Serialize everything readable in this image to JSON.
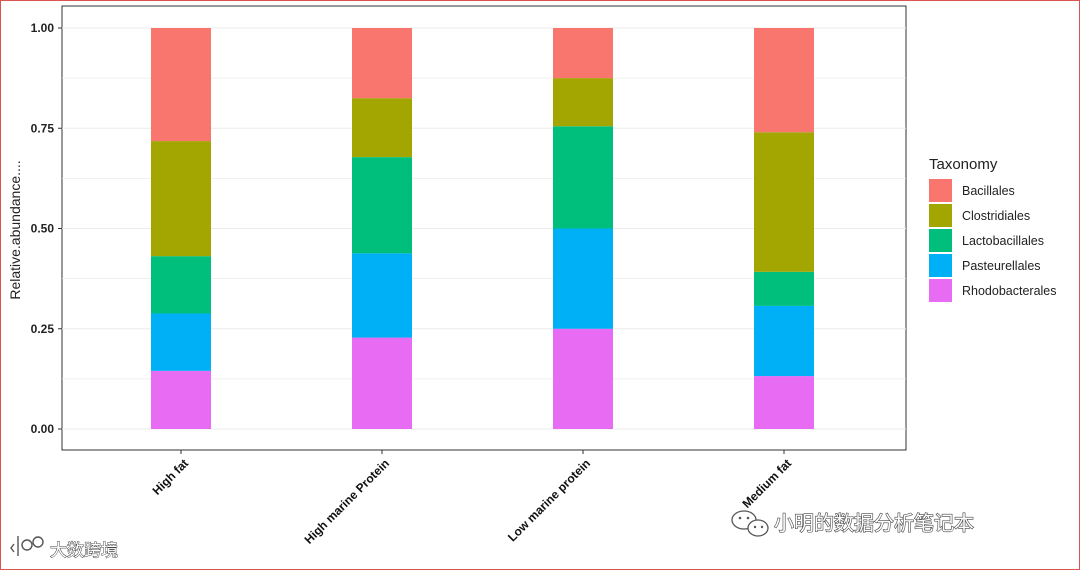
{
  "chart_data": {
    "type": "bar",
    "stacked": true,
    "title": "",
    "xlabel": "",
    "ylabel": "Relative.abundance....",
    "ylim": [
      0,
      1
    ],
    "yticks": [
      "0.00",
      "0.25",
      "0.50",
      "0.75",
      "1.00"
    ],
    "grid": true,
    "legend_position": "right",
    "legend_title": "Taxonomy",
    "categories": [
      "High fat",
      "High marine Protein",
      "Low marine protein",
      "Medium fat"
    ],
    "series": [
      {
        "name": "Rhodobacterales",
        "color": "#E76BF3",
        "values": [
          0.145,
          0.228,
          0.25,
          0.132
        ]
      },
      {
        "name": "Pasteurellales",
        "color": "#00B0F6",
        "values": [
          0.143,
          0.21,
          0.25,
          0.175
        ]
      },
      {
        "name": "Lactobacillales",
        "color": "#00BF7D",
        "values": [
          0.143,
          0.24,
          0.255,
          0.085
        ]
      },
      {
        "name": "Clostridiales",
        "color": "#A3A500",
        "values": [
          0.287,
          0.147,
          0.12,
          0.348
        ]
      },
      {
        "name": "Bacillales",
        "color": "#F8766D",
        "values": [
          0.282,
          0.175,
          0.125,
          0.26
        ]
      }
    ]
  },
  "watermarks": {
    "left": "大数跨境",
    "right": "小明的数据分析笔记本"
  }
}
